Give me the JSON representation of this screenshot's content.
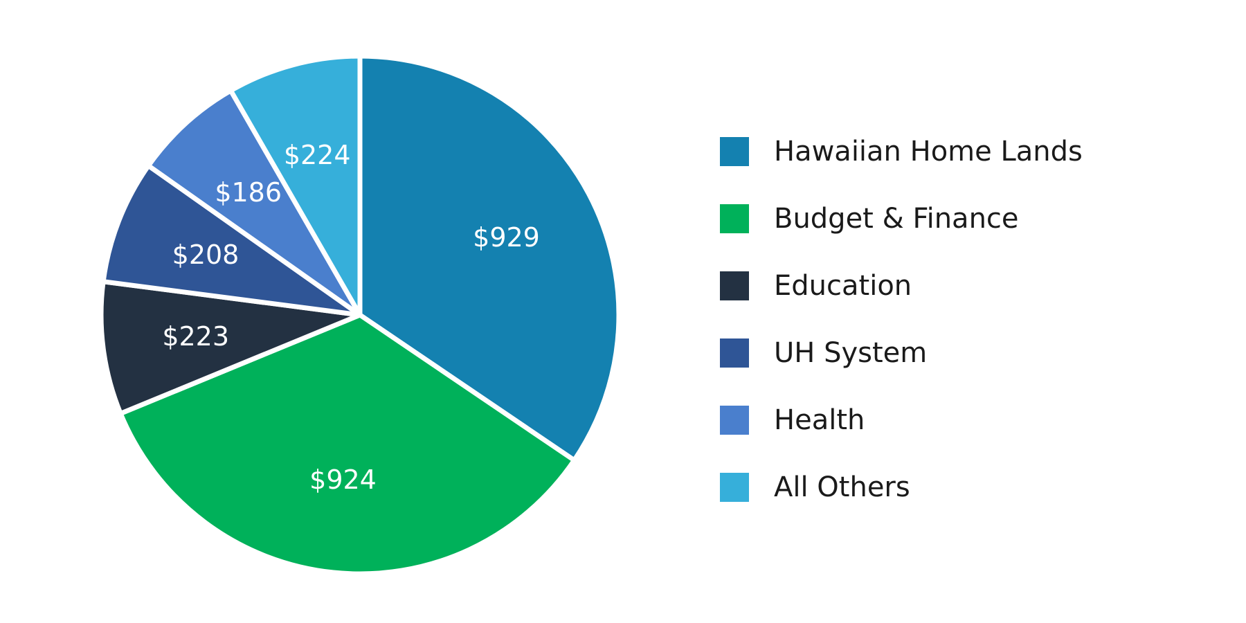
{
  "chart_data": {
    "type": "pie",
    "categories": [
      "Hawaiian Home Lands",
      "Budget & Finance",
      "Education",
      "UH System",
      "Health",
      "All Others"
    ],
    "values": [
      929,
      924,
      223,
      208,
      186,
      224
    ],
    "labels": [
      "$929",
      "$924",
      "$223",
      "$208",
      "$186",
      "$224"
    ],
    "colors": [
      "#1481B0",
      "#00B15A",
      "#233142",
      "#2F5596",
      "#4A7FCD",
      "#36AFDA"
    ],
    "legend_position": "right"
  },
  "legend": [
    {
      "label": "Hawaiian Home Lands",
      "color": "#1481B0"
    },
    {
      "label": "Budget & Finance",
      "color": "#00B15A"
    },
    {
      "label": "Education",
      "color": "#233142"
    },
    {
      "label": "UH System",
      "color": "#2F5596"
    },
    {
      "label": "Health",
      "color": "#4A7FCD"
    },
    {
      "label": "All Others",
      "color": "#36AFDA"
    }
  ]
}
